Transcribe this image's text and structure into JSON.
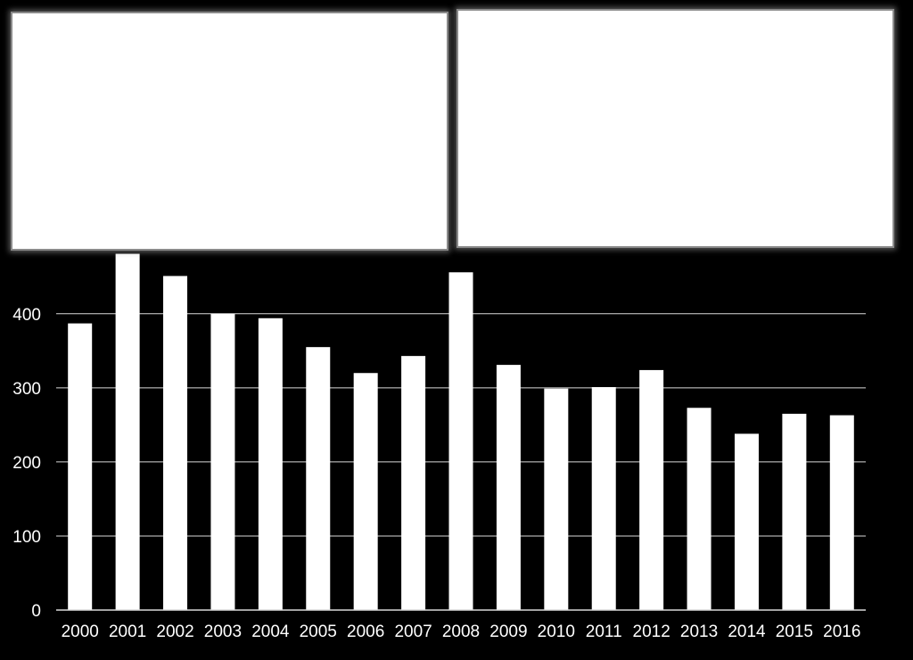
{
  "chart_data": {
    "type": "bar",
    "categories": [
      "2000",
      "2001",
      "2002",
      "2003",
      "2004",
      "2005",
      "2006",
      "2007",
      "2008",
      "2009",
      "2010",
      "2011",
      "2012",
      "2013",
      "2014",
      "2015",
      "2016"
    ],
    "values": [
      387,
      481,
      451,
      400,
      394,
      355,
      320,
      343,
      456,
      331,
      299,
      301,
      324,
      273,
      238,
      265,
      263
    ],
    "ylim": [
      0,
      500
    ],
    "yticks": [
      0,
      100,
      200,
      300,
      400
    ],
    "title": "",
    "xlabel": "",
    "ylabel": "",
    "grid": "horizontal",
    "colors": {
      "background": "#000000",
      "bar": "#ffffff",
      "gridline": "#d9d9d9",
      "text": "#ffffff"
    }
  }
}
